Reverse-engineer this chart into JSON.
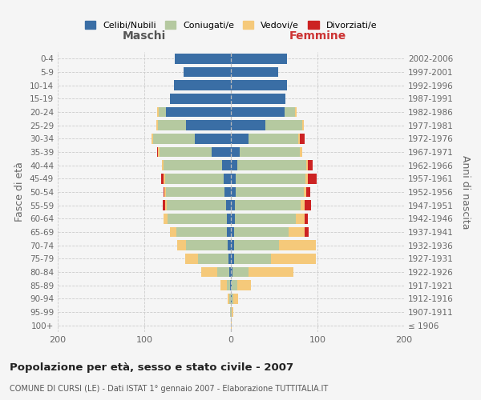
{
  "age_groups": [
    "100+",
    "95-99",
    "90-94",
    "85-89",
    "80-84",
    "75-79",
    "70-74",
    "65-69",
    "60-64",
    "55-59",
    "50-54",
    "45-49",
    "40-44",
    "35-39",
    "30-34",
    "25-29",
    "20-24",
    "15-19",
    "10-14",
    "5-9",
    "0-4"
  ],
  "birth_years": [
    "≤ 1906",
    "1907-1911",
    "1912-1916",
    "1917-1921",
    "1922-1926",
    "1927-1931",
    "1932-1936",
    "1937-1941",
    "1942-1946",
    "1947-1951",
    "1952-1956",
    "1957-1961",
    "1962-1966",
    "1967-1971",
    "1972-1976",
    "1977-1981",
    "1982-1986",
    "1987-1991",
    "1992-1996",
    "1997-2001",
    "2002-2006"
  ],
  "male_celibi": [
    0,
    0,
    0,
    1,
    2,
    3,
    4,
    5,
    5,
    6,
    7,
    8,
    10,
    22,
    42,
    52,
    75,
    70,
    66,
    55,
    65
  ],
  "male_coniugati": [
    0,
    1,
    2,
    4,
    14,
    35,
    48,
    58,
    68,
    68,
    68,
    68,
    68,
    60,
    48,
    32,
    8,
    0,
    0,
    0,
    0
  ],
  "male_vedovi": [
    0,
    0,
    2,
    7,
    18,
    15,
    10,
    7,
    5,
    2,
    2,
    2,
    2,
    2,
    2,
    2,
    2,
    0,
    0,
    0,
    0
  ],
  "male_divorziati": [
    0,
    0,
    0,
    0,
    0,
    0,
    0,
    0,
    0,
    3,
    1,
    3,
    0,
    1,
    0,
    0,
    0,
    0,
    0,
    0,
    0
  ],
  "female_nubili": [
    0,
    0,
    1,
    1,
    2,
    4,
    4,
    4,
    5,
    5,
    6,
    6,
    7,
    10,
    20,
    40,
    62,
    63,
    65,
    55,
    65
  ],
  "female_coniugate": [
    0,
    1,
    2,
    6,
    18,
    42,
    52,
    63,
    70,
    76,
    78,
    80,
    80,
    70,
    58,
    42,
    12,
    0,
    0,
    0,
    0
  ],
  "female_vedove": [
    1,
    2,
    5,
    16,
    52,
    52,
    42,
    18,
    10,
    4,
    3,
    3,
    2,
    2,
    2,
    2,
    2,
    0,
    0,
    0,
    0
  ],
  "female_divorziate": [
    0,
    0,
    0,
    0,
    0,
    0,
    0,
    5,
    4,
    8,
    5,
    10,
    5,
    0,
    5,
    0,
    0,
    0,
    0,
    0,
    0
  ],
  "color_celibi": "#3a6ea5",
  "color_coniugati": "#b5c9a0",
  "color_vedovi": "#f5c97a",
  "color_divorziati": "#cc2222",
  "title": "Popolazione per età, sesso e stato civile - 2007",
  "subtitle": "COMUNE DI CURSI (LE) - Dati ISTAT 1° gennaio 2007 - Elaborazione TUTTITALIA.IT",
  "ylabel_left": "Fasce di età",
  "ylabel_right": "Anni di nascita",
  "label_maschi": "Maschi",
  "label_femmine": "Femmine",
  "xlim": 200,
  "bg_color": "#f5f5f5",
  "grid_color": "#cccccc",
  "legend_labels": [
    "Celibi/Nubili",
    "Coniugati/e",
    "Vedovi/e",
    "Divorziati/e"
  ]
}
